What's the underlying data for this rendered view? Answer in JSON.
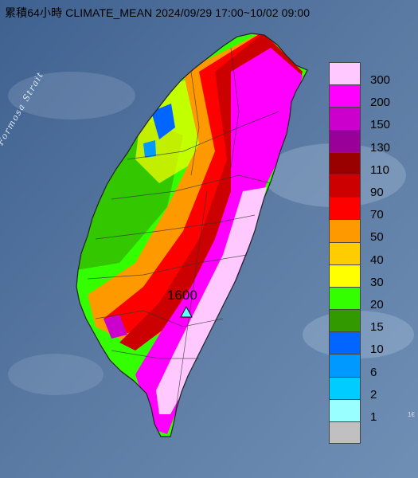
{
  "title": "累積64小時 CLIMATE_MEAN 2024/09/29 17:00~10/02 09:00",
  "sea_label": "Formosa Strait",
  "peak_station": {
    "value": "1600",
    "marker": "triangle-marker"
  },
  "corner_text": "1€",
  "legend": [
    {
      "label": "300",
      "color": "#ffc8ff"
    },
    {
      "label": "200",
      "color": "#ff00ff"
    },
    {
      "label": "150",
      "color": "#cc00cc"
    },
    {
      "label": "130",
      "color": "#990099"
    },
    {
      "label": "110",
      "color": "#990000"
    },
    {
      "label": "90",
      "color": "#cc0000"
    },
    {
      "label": "70",
      "color": "#ff0000"
    },
    {
      "label": "50",
      "color": "#ff9900"
    },
    {
      "label": "40",
      "color": "#ffcc00"
    },
    {
      "label": "30",
      "color": "#ffff00"
    },
    {
      "label": "20",
      "color": "#33ff00"
    },
    {
      "label": "15",
      "color": "#339900"
    },
    {
      "label": "10",
      "color": "#0066ff"
    },
    {
      "label": "6",
      "color": "#0099ff"
    },
    {
      "label": "2",
      "color": "#00ccff"
    },
    {
      "label": "1",
      "color": "#99ffff"
    },
    {
      "label": "",
      "color": "#c0c0c0"
    }
  ]
}
